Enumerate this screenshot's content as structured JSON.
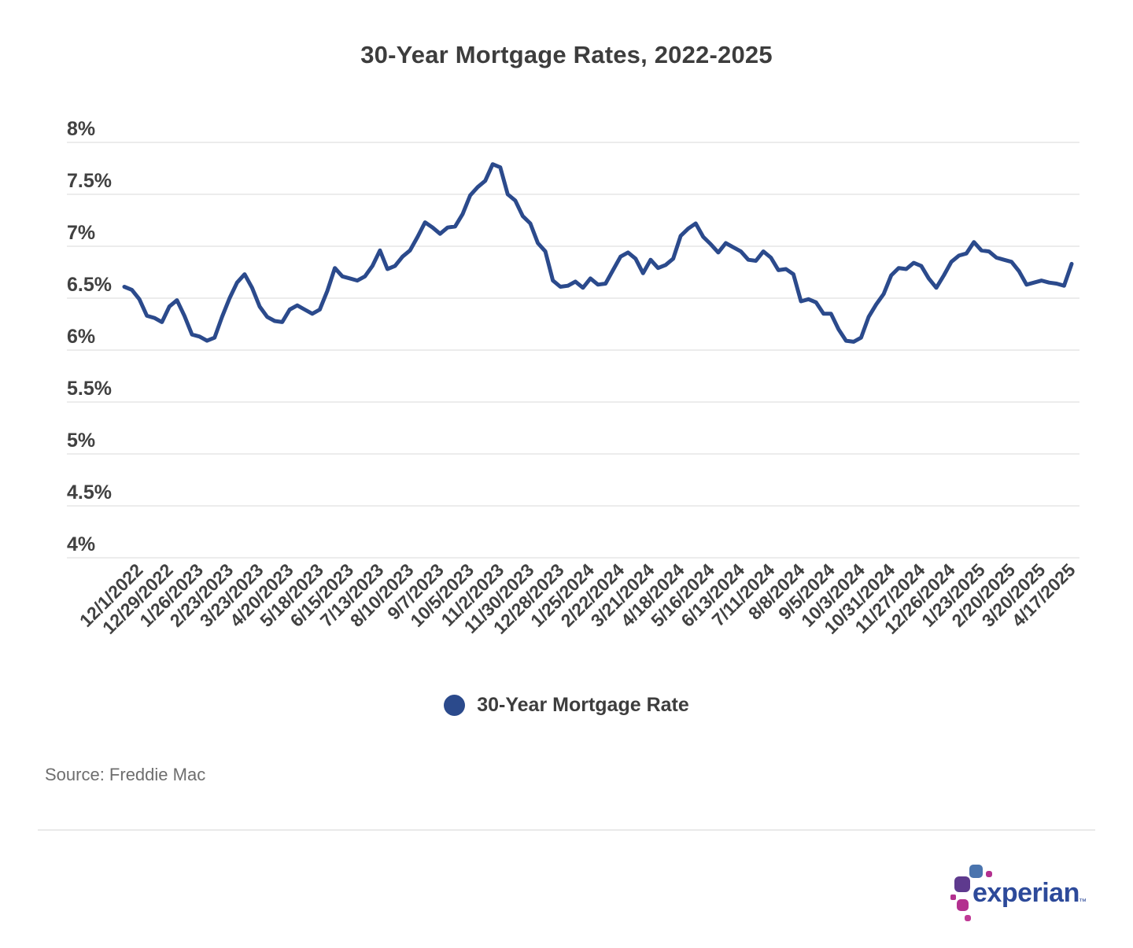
{
  "source": "Source: Freddie Mac",
  "colors": {
    "background": "#ffffff",
    "line": "#2b4a8c",
    "grid": "#ececec",
    "title_text": "#3d3d3d",
    "axis_text": "#414141",
    "source_text": "#6e6e6e",
    "divider": "#e9e9e9"
  },
  "branding": {
    "wordmark": "experian",
    "trademark": "™",
    "wordmark_color": "#2d4a9a",
    "block_colors": [
      "#4a74ae",
      "#b3308f",
      "#5e3a8e",
      "#b3308f",
      "#b3308f",
      "#c03a96"
    ]
  },
  "chart_data": {
    "type": "line",
    "title": "30-Year Mortgage Rates, 2022-2025",
    "xlabel": "",
    "ylabel": "",
    "y_range": [
      4,
      8
    ],
    "y_tick_step": 0.5,
    "y_ticks": [
      "8%",
      "7.5%",
      "7%",
      "6.5%",
      "6%",
      "5.5%",
      "5%",
      "4.5%",
      "4%"
    ],
    "grid": "horizontal",
    "legend_position": "bottom",
    "x_labels": [
      "12/1/2022",
      "12/29/2022",
      "1/26/2023",
      "2/23/2023",
      "3/23/2023",
      "4/20/2023",
      "5/18/2023",
      "6/15/2023",
      "7/13/2023",
      "8/10/2023",
      "9/7/2023",
      "10/5/2023",
      "11/2/2023",
      "11/30/2023",
      "12/28/2023",
      "1/25/2024",
      "2/22/2024",
      "3/21/2024",
      "4/18/2024",
      "5/16/2024",
      "6/13/2024",
      "7/11/2024",
      "8/8/2024",
      "9/5/2024",
      "10/3/2024",
      "10/31/2024",
      "11/27/2024",
      "12/26/2024",
      "1/23/2025",
      "2/20/2025",
      "3/20/2025",
      "4/17/2025"
    ],
    "x_label_start_index": 2,
    "x_label_every": 4,
    "series": [
      {
        "name": "30-Year Mortgage Rate",
        "color": "#2b4a8c",
        "frequency": "weekly",
        "values": [
          6.61,
          6.58,
          6.49,
          6.33,
          6.31,
          6.27,
          6.42,
          6.48,
          6.33,
          6.15,
          6.13,
          6.09,
          6.12,
          6.32,
          6.5,
          6.65,
          6.73,
          6.6,
          6.42,
          6.32,
          6.28,
          6.27,
          6.39,
          6.43,
          6.39,
          6.35,
          6.39,
          6.57,
          6.79,
          6.71,
          6.69,
          6.67,
          6.71,
          6.81,
          6.96,
          6.78,
          6.81,
          6.9,
          6.96,
          7.09,
          7.23,
          7.18,
          7.12,
          7.18,
          7.19,
          7.31,
          7.49,
          7.57,
          7.63,
          7.79,
          7.76,
          7.5,
          7.44,
          7.29,
          7.22,
          7.03,
          6.95,
          6.67,
          6.61,
          6.62,
          6.66,
          6.6,
          6.69,
          6.63,
          6.64,
          6.77,
          6.9,
          6.94,
          6.88,
          6.74,
          6.87,
          6.79,
          6.82,
          6.88,
          7.1,
          7.17,
          7.22,
          7.09,
          7.02,
          6.94,
          7.03,
          6.99,
          6.95,
          6.87,
          6.86,
          6.95,
          6.89,
          6.77,
          6.78,
          6.73,
          6.47,
          6.49,
          6.46,
          6.35,
          6.35,
          6.2,
          6.09,
          6.08,
          6.12,
          6.32,
          6.44,
          6.54,
          6.72,
          6.79,
          6.78,
          6.84,
          6.81,
          6.69,
          6.6,
          6.72,
          6.85,
          6.91,
          6.93,
          7.04,
          6.96,
          6.95,
          6.89,
          6.87,
          6.85,
          6.76,
          6.63,
          6.65,
          6.67,
          6.65,
          6.64,
          6.62,
          6.83
        ]
      }
    ]
  }
}
